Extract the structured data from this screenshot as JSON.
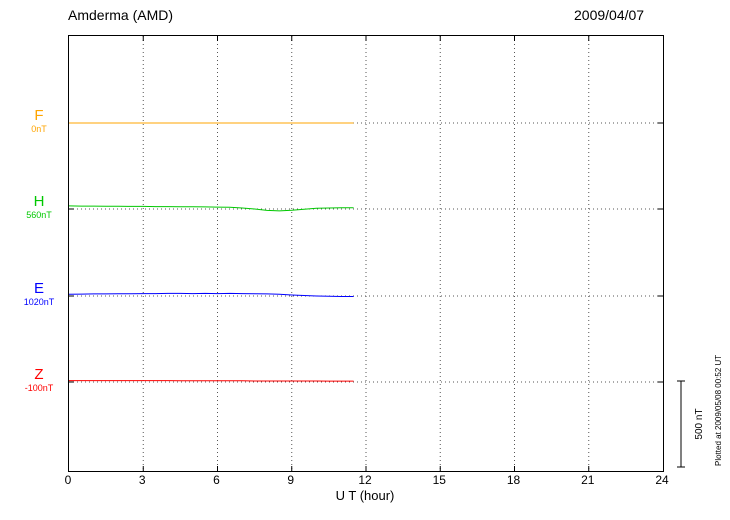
{
  "header": {
    "title": "Amderma (AMD)",
    "date": "2009/04/07"
  },
  "axis": {
    "xlabel": "U T (hour)",
    "ticks": [
      0,
      3,
      6,
      9,
      12,
      15,
      18,
      21,
      24
    ]
  },
  "scalebar": {
    "label": "500 nT"
  },
  "footer": {
    "plotted": "Plotted at 2009/05/08 00:52 UT"
  },
  "chart_data": {
    "type": "line",
    "title": "Amderma (AMD)",
    "date": "2009/04/07",
    "xlabel": "U T (hour)",
    "xlim": [
      0,
      24
    ],
    "x_ticks": [
      0,
      3,
      6,
      9,
      12,
      15,
      18,
      21,
      24
    ],
    "component_spacing_nT": 500,
    "scale_bar_nT": 500,
    "data_end_hour": 11.5,
    "x_hours": [
      0,
      0.5,
      1,
      1.5,
      2,
      2.5,
      3,
      3.5,
      4,
      4.5,
      5,
      5.5,
      6,
      6.5,
      7,
      7.5,
      8,
      8.5,
      9,
      9.5,
      10,
      10.5,
      11,
      11.5
    ],
    "components": [
      {
        "name": "F",
        "baseline_label": "0nT",
        "color": "#FFA500",
        "offsets_nT": [
          0,
          0,
          0,
          0,
          0,
          0,
          0,
          0,
          0,
          0,
          0,
          0,
          0,
          0,
          0,
          0,
          0,
          0,
          0,
          0,
          0,
          0,
          0,
          0
        ]
      },
      {
        "name": "H",
        "baseline_label": "560nT",
        "color": "#00C800",
        "offsets_nT": [
          18,
          17,
          17,
          16,
          16,
          15,
          15,
          14,
          14,
          13,
          13,
          12,
          11,
          10,
          6,
          0,
          -8,
          -11,
          -7,
          -1,
          4,
          6,
          7,
          7
        ]
      },
      {
        "name": "E",
        "baseline_label": "1020nT",
        "color": "#0000FF",
        "offsets_nT": [
          10,
          11,
          12,
          12,
          13,
          13,
          14,
          14,
          15,
          15,
          14,
          15,
          14,
          15,
          14,
          13,
          12,
          10,
          6,
          3,
          0,
          -2,
          -3,
          -3
        ]
      },
      {
        "name": "Z",
        "baseline_label": "-100nT",
        "color": "#FF0000",
        "offsets_nT": [
          8,
          8,
          8,
          8,
          8,
          8,
          8,
          8,
          8,
          7,
          7,
          7,
          7,
          7,
          7,
          6,
          6,
          6,
          6,
          6,
          6,
          5,
          5,
          5
        ]
      }
    ]
  }
}
